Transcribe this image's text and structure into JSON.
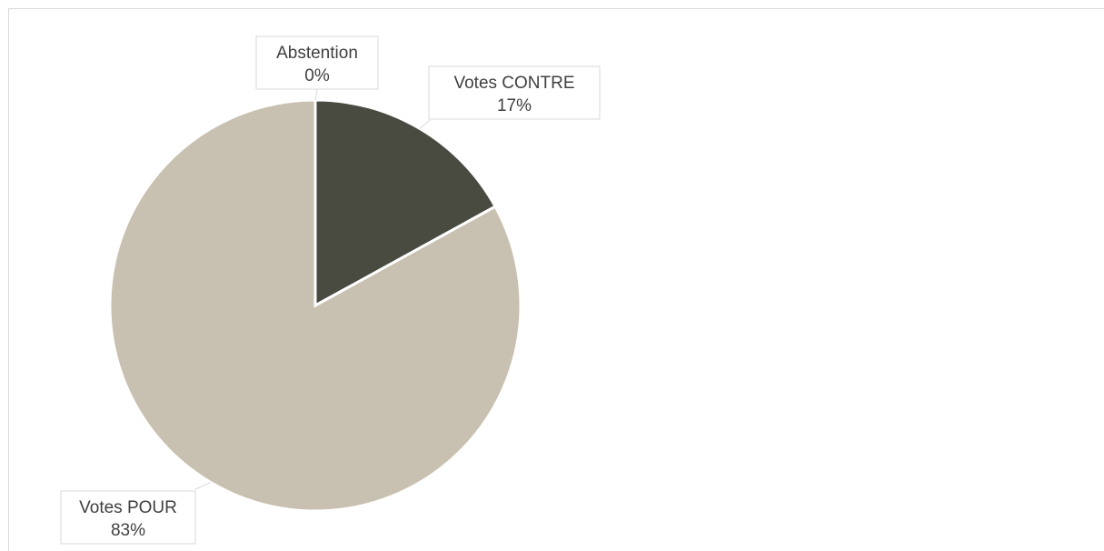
{
  "chart_data": {
    "type": "pie",
    "slices": [
      {
        "label": "Votes CONTRE",
        "value": 17,
        "display": "17%",
        "color": "#494b41"
      },
      {
        "label": "Votes POUR",
        "value": 83,
        "display": "83%",
        "color": "#c8c0b0"
      },
      {
        "label": "Abstention",
        "value": 0,
        "display": "0%",
        "color": "#8c8c80"
      }
    ],
    "start_angle": "12 o'clock",
    "direction": "clockwise",
    "legend": "none",
    "slice_border_color": "#ffffff"
  }
}
